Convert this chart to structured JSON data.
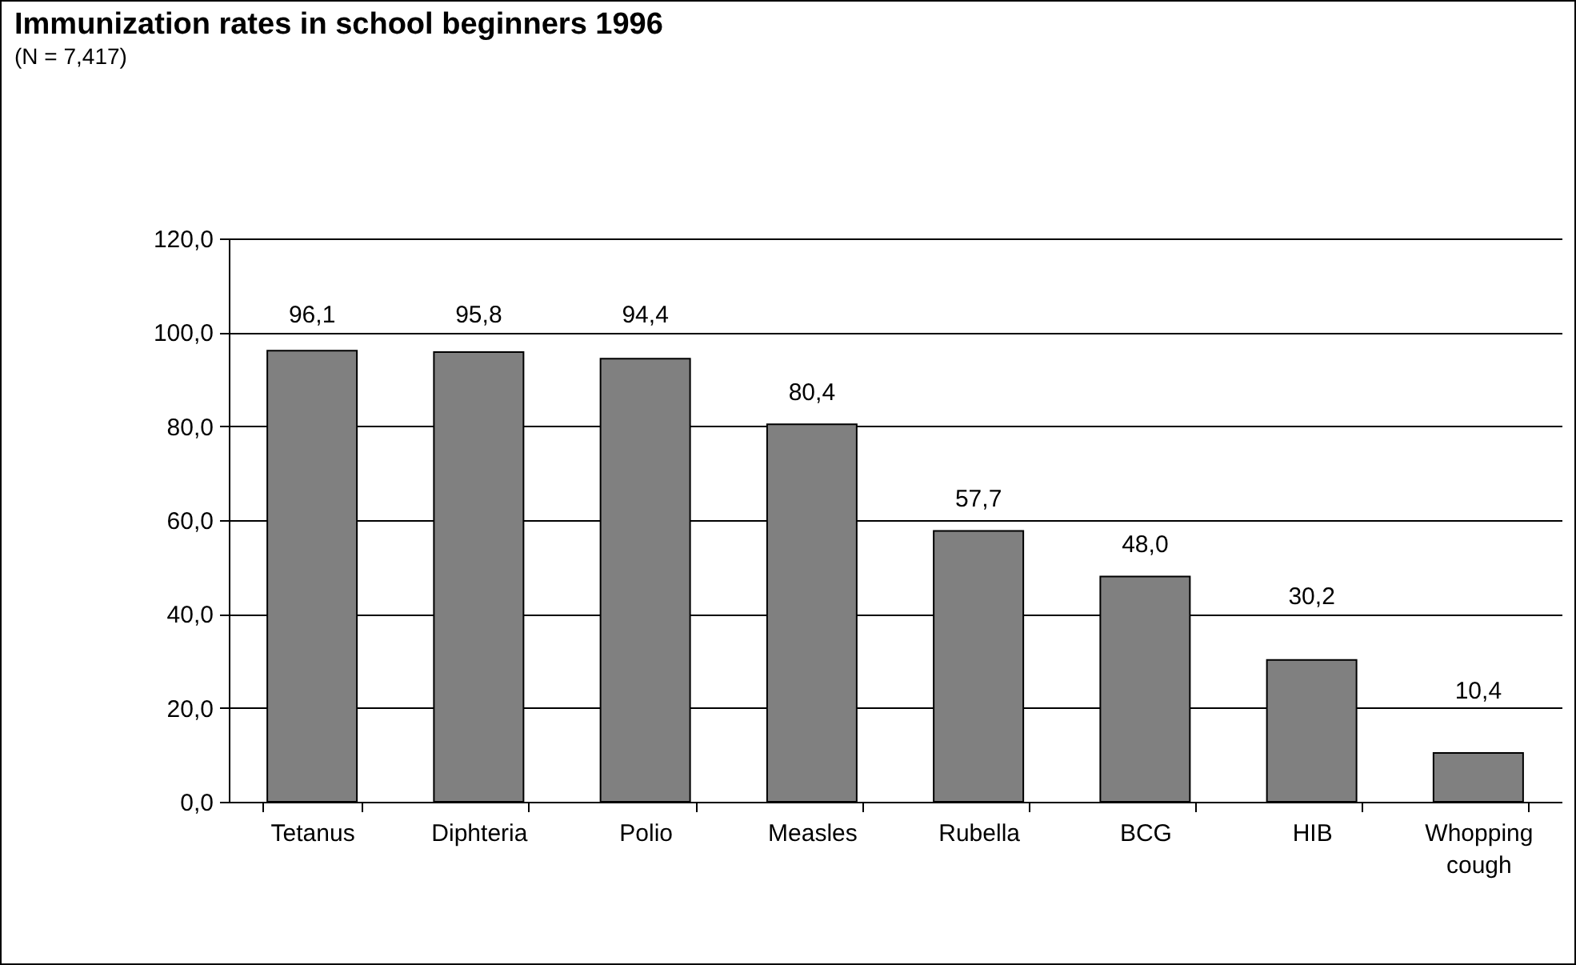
{
  "chart_data": {
    "type": "bar",
    "title": "Immunization rates in school beginners 1996",
    "subtitle": "(N = 7,417)",
    "categories": [
      "Tetanus",
      "Diphteria",
      "Polio",
      "Measles",
      "Rubella",
      "BCG",
      "HIB",
      "Whopping cough"
    ],
    "values": [
      96.1,
      95.8,
      94.4,
      80.4,
      57.7,
      48.0,
      30.2,
      10.4
    ],
    "value_labels": [
      "96,1",
      "95,8",
      "94,4",
      "80,4",
      "57,7",
      "48,0",
      "30,2",
      "10,4"
    ],
    "color": "#808080",
    "ylim": [
      0,
      120
    ],
    "yticks": [
      {
        "value": 0,
        "label": "0,0"
      },
      {
        "value": 20,
        "label": "20,0"
      },
      {
        "value": 40,
        "label": "40,0"
      },
      {
        "value": 60,
        "label": "60,0"
      },
      {
        "value": 80,
        "label": "80,0"
      },
      {
        "value": 100,
        "label": "100,0"
      },
      {
        "value": 120,
        "label": "120,0"
      }
    ],
    "grid": "y"
  }
}
